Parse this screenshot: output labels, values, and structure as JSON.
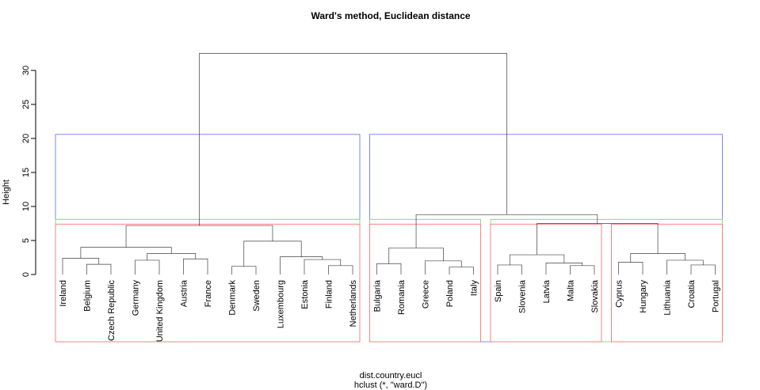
{
  "chart_data": {
    "type": "dendrogram",
    "title": "Ward's method, Euclidean distance",
    "ylabel": "Height",
    "xlabel": "dist.country.eucl",
    "sublabel": "hclust (*, \"ward.D\")",
    "ylim": [
      0,
      33
    ],
    "yticks": [
      0,
      5,
      10,
      15,
      20,
      25,
      30
    ],
    "yticklabels": [
      "0",
      "5",
      "10",
      "15",
      "20",
      "25",
      "30"
    ],
    "leaves": [
      "Ireland",
      "Belgium",
      "Czech Republic",
      "Germany",
      "United Kingdom",
      "Austria",
      "France",
      "Denmark",
      "Sweden",
      "Luxembourg",
      "Estonia",
      "Finland",
      "Netherlands",
      "Bulgaria",
      "Romania",
      "Greece",
      "Poland",
      "Italy",
      "Spain",
      "Slovenia",
      "Latvia",
      "Malta",
      "Slovakia",
      "Cyprus",
      "Hungary",
      "Lithuania",
      "Croatia",
      "Portugal"
    ],
    "merges": [
      {
        "a": "Belgium",
        "b": "Czech Republic",
        "height": 1.5
      },
      {
        "a": "Ireland",
        "b": "Belgium+Czech Republic",
        "height": 2.4
      },
      {
        "a": "Germany",
        "b": "United Kingdom",
        "height": 2.1
      },
      {
        "a": "Austria",
        "b": "France",
        "height": 2.3
      },
      {
        "a": "Germany+United Kingdom",
        "b": "Austria+France",
        "height": 3.1
      },
      {
        "a": "Ireland+Belgium+Czech Republic",
        "b": "Germany+United Kingdom+Austria+France",
        "height": 4.0
      },
      {
        "a": "Denmark",
        "b": "Sweden",
        "height": 1.2
      },
      {
        "a": "Finland",
        "b": "Netherlands",
        "height": 1.3
      },
      {
        "a": "Estonia",
        "b": "Finland+Netherlands",
        "height": 2.2
      },
      {
        "a": "Luxembourg",
        "b": "Estonia+Finland+Netherlands",
        "height": 2.6
      },
      {
        "a": "Denmark+Sweden",
        "b": "Luxembourg+Estonia+Finland+Netherlands",
        "height": 4.9
      },
      {
        "a": "Cluster 1A",
        "b": "Cluster 1B",
        "height": 7.2
      },
      {
        "a": "Bulgaria",
        "b": "Romania",
        "height": 1.6
      },
      {
        "a": "Poland",
        "b": "Italy",
        "height": 1.1
      },
      {
        "a": "Greece",
        "b": "Poland+Italy",
        "height": 2.0
      },
      {
        "a": "Bulgaria+Romania",
        "b": "Greece+Poland+Italy",
        "height": 3.9
      },
      {
        "a": "Spain",
        "b": "Slovenia",
        "height": 1.4
      },
      {
        "a": "Malta",
        "b": "Slovakia",
        "height": 1.3
      },
      {
        "a": "Latvia",
        "b": "Malta+Slovakia",
        "height": 1.7
      },
      {
        "a": "Spain+Slovenia",
        "b": "Latvia+Malta+Slovakia",
        "height": 2.9
      },
      {
        "a": "Cyprus",
        "b": "Hungary",
        "height": 1.8
      },
      {
        "a": "Croatia",
        "b": "Portugal",
        "height": 1.4
      },
      {
        "a": "Lithuania",
        "b": "Croatia+Portugal",
        "height": 2.1
      },
      {
        "a": "Cyprus+Hungary",
        "b": "Lithuania+Croatia+Portugal",
        "height": 3.1
      },
      {
        "a": "Cluster 2B",
        "b": "Cluster 2C",
        "height": 7.5
      },
      {
        "a": "Cluster 2A",
        "b": "Cluster 2B+2C",
        "height": 8.8
      },
      {
        "a": "Cluster 1",
        "b": "Cluster 2",
        "height": 32.5
      }
    ],
    "rect_groups": [
      {
        "k": 2,
        "color": "#8080ff",
        "cut_height": 20.6,
        "groups": [
          [
            0,
            12
          ],
          [
            13,
            27
          ]
        ]
      },
      {
        "k": 3,
        "color": "#80e080",
        "cut_height": 8.1,
        "groups": [
          [
            0,
            12
          ],
          [
            13,
            17
          ],
          [
            18,
            27
          ]
        ]
      },
      {
        "k": 4,
        "color": "#ff8080",
        "cut_height": 7.4,
        "groups": [
          [
            0,
            12
          ],
          [
            13,
            17
          ],
          [
            18,
            22
          ],
          [
            23,
            27
          ]
        ]
      }
    ],
    "colors": {
      "tree": "#000000",
      "axis": "#000000"
    }
  }
}
